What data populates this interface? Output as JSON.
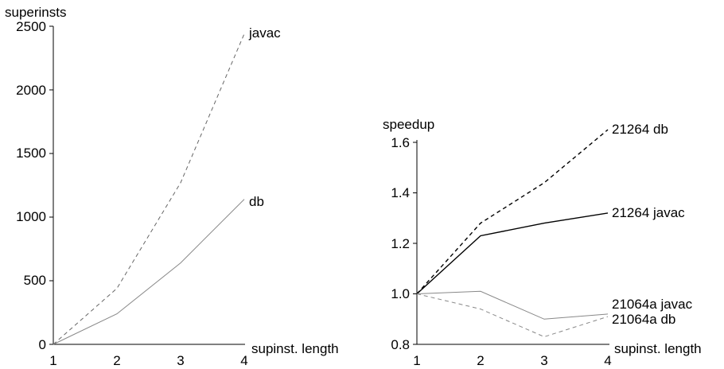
{
  "chart_data": [
    {
      "type": "line",
      "ylabel": "superinsts",
      "xlabel": "supinst. length",
      "x": [
        1,
        2,
        3,
        4
      ],
      "xticks": [
        "1",
        "2",
        "3",
        "4"
      ],
      "ylim": [
        0,
        2500
      ],
      "yticks": [
        "0",
        "500",
        "1000",
        "1500",
        "2000",
        "2500"
      ],
      "grid": false,
      "series": [
        {
          "name": "javac",
          "values": [
            0,
            440,
            1270,
            2440
          ],
          "color": "#666666",
          "dashed": true
        },
        {
          "name": "db",
          "values": [
            0,
            240,
            640,
            1140
          ],
          "color": "#888888",
          "dashed": false
        }
      ]
    },
    {
      "type": "line",
      "ylabel": "speedup",
      "xlabel": "supinst. length",
      "x": [
        1,
        2,
        3,
        4
      ],
      "xticks": [
        "1",
        "2",
        "3",
        "4"
      ],
      "ylim": [
        0.8,
        1.6
      ],
      "yticks": [
        "0.8",
        "1.0",
        "1.2",
        "1.4",
        "1.6"
      ],
      "grid": false,
      "series": [
        {
          "name": "21264 db",
          "values": [
            1.0,
            1.28,
            1.44,
            1.65
          ],
          "color": "#000000",
          "dashed": true
        },
        {
          "name": "21264 javac",
          "values": [
            1.0,
            1.23,
            1.28,
            1.32
          ],
          "color": "#000000",
          "dashed": false
        },
        {
          "name": "21064a javac",
          "values": [
            1.0,
            1.01,
            0.9,
            0.92
          ],
          "color": "#888888",
          "dashed": false
        },
        {
          "name": "21064a db",
          "values": [
            1.0,
            0.94,
            0.83,
            0.91
          ],
          "color": "#888888",
          "dashed": true
        }
      ]
    }
  ]
}
